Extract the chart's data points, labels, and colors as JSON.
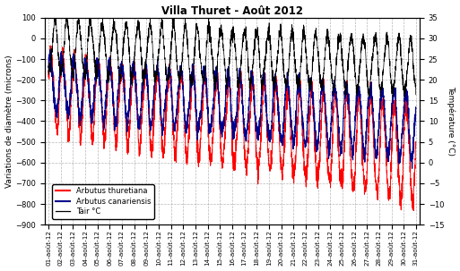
{
  "title": "Villa Thuret - Août 2012",
  "ylabel_left": "Variations de diamètre (microns)",
  "ylabel_right": "Température (°C)",
  "ylim_left": [
    -900,
    100
  ],
  "ylim_right": [
    -15,
    35
  ],
  "yticks_left": [
    -900,
    -800,
    -700,
    -600,
    -500,
    -400,
    -300,
    -200,
    -100,
    0,
    100
  ],
  "yticks_right": [
    -15,
    -10,
    -5,
    0,
    5,
    10,
    15,
    20,
    25,
    30,
    35
  ],
  "color_thuretiana": "#FF0000",
  "color_canariensis": "#00008B",
  "color_tair": "#000000",
  "legend_labels": [
    "Arbutus thuretiana",
    "Arbutus canariensis",
    "Tair °C"
  ],
  "x_labels": [
    "01-août-12",
    "02-août-12",
    "03-août-12",
    "04-août-12",
    "05-août-12",
    "06-août-12",
    "07-août-12",
    "08-août-12",
    "09-août-12",
    "10-août-12",
    "11-août-12",
    "12-août-12",
    "13-août-12",
    "14-août-12",
    "15-août-12",
    "16-août-12",
    "17-août-12",
    "18-août-12",
    "19-août-12",
    "20-août-12",
    "21-août-12",
    "22-août-12",
    "23-août-12",
    "24-août-12",
    "25-août-12",
    "26-août-12",
    "27-août-12",
    "28-août-12",
    "29-août-12",
    "30-août-12",
    "31-août-12"
  ],
  "n_days": 31,
  "pts_per_day": 96,
  "background_color": "#FFFFFF",
  "grid_color": "#888888",
  "title_fontsize": 8.5,
  "ylabel_fontsize": 6.5,
  "tick_fontsize": 6,
  "xtick_fontsize": 5.2,
  "legend_fontsize": 6
}
